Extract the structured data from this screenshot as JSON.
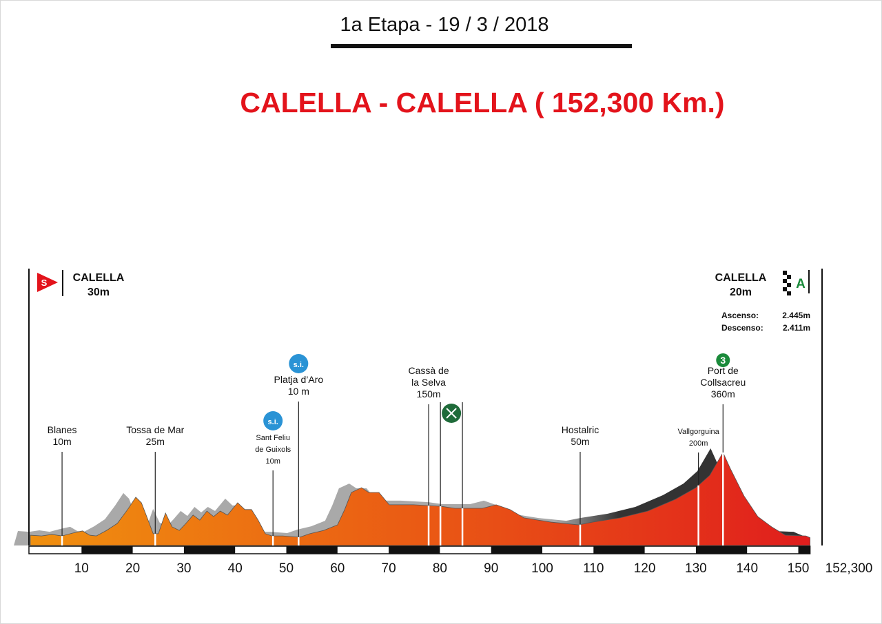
{
  "header": {
    "stage_date": "1a Etapa - 19 / 3 / 2018",
    "route_title": "CALELLA - CALELLA ( 152,300 Km.)"
  },
  "start": {
    "name": "CALELLA",
    "elevation": "30m",
    "icon": "start-flag-icon",
    "icon_text": "S"
  },
  "finish": {
    "name": "CALELLA",
    "elevation": "20m",
    "icon": "checkered-flag-icon",
    "icon_text": "A"
  },
  "totals": {
    "ascent_label": "Ascenso:",
    "ascent_value": "2.445m",
    "descent_label": "Descenso:",
    "descent_value": "2.411m"
  },
  "colors": {
    "title": "#e3131b",
    "profile_start": "#f0900f",
    "profile_mid": "#ea5a14",
    "profile_end": "#e01d1d",
    "shadow": "#a9a9a9",
    "shadow_dark": "#333333",
    "sprint_icon": "#2a93d5",
    "climb_icon": "#1a8a3a"
  },
  "chart_data": {
    "type": "area",
    "title": "",
    "xlabel": "",
    "ylabel": "",
    "xlim": [
      0,
      152.3
    ],
    "ylim": [
      0,
      380
    ],
    "x_ticks": [
      "10",
      "20",
      "30",
      "40",
      "50",
      "60",
      "70",
      "80",
      "90",
      "100",
      "110",
      "120",
      "130",
      "140",
      "150"
    ],
    "x_end_label": "152,300",
    "grid": false,
    "profile": {
      "km": [
        0,
        2.2,
        4.2,
        6.2,
        8.2,
        10.2,
        11.6,
        12.9,
        14.9,
        17.0,
        19.0,
        20.6,
        21.7,
        23.0,
        24.0,
        25.0,
        26.4,
        27.7,
        29.1,
        30.4,
        31.8,
        33.1,
        34.5,
        35.8,
        37.1,
        38.5,
        40.5,
        41.9,
        43.2,
        44.5,
        45.9,
        47.2,
        49.3,
        52.6,
        54.6,
        57.3,
        60.0,
        61.4,
        62.7,
        64.7,
        66.1,
        68.1,
        70.1,
        74.8,
        80.2,
        82.9,
        88.3,
        91.0,
        93.7,
        96.4,
        101.7,
        107.1,
        109.8,
        115.2,
        120.6,
        126.0,
        130.0,
        132.7,
        135.3,
        136.7,
        139.4,
        142.1,
        144.8,
        147.5,
        151.5,
        152.3
      ],
      "elevation_m": [
        30,
        27,
        33,
        27,
        38,
        47,
        30,
        27,
        49,
        77,
        132,
        181,
        159,
        90,
        36,
        36,
        118,
        63,
        49,
        77,
        110,
        90,
        126,
        104,
        126,
        110,
        159,
        132,
        132,
        90,
        36,
        27,
        27,
        22,
        36,
        49,
        71,
        132,
        200,
        219,
        200,
        200,
        151,
        151,
        145,
        137,
        137,
        151,
        132,
        99,
        82,
        71,
        82,
        99,
        126,
        173,
        219,
        268,
        359,
        296,
        186,
        104,
        63,
        30,
        27,
        20
      ]
    },
    "waypoints": [
      {
        "km": 6.2,
        "lines": [
          "Blanes",
          "10m"
        ],
        "icon": null
      },
      {
        "km": 24.4,
        "lines": [
          "Tossa de Mar",
          "25m"
        ],
        "icon": null
      },
      {
        "km": 47.4,
        "lines": [
          "Sant Feliu",
          "de Guixols",
          "10m"
        ],
        "icon": "intermediate-sprint-icon",
        "icon_text": "s.i.",
        "small": true
      },
      {
        "km": 52.4,
        "lines": [
          "Platja d’Aro",
          "10 m"
        ],
        "icon": "intermediate-sprint-icon",
        "icon_text": "s.i."
      },
      {
        "km": 77.8,
        "lines": [
          "Cassà de",
          "la Selva",
          "150m"
        ],
        "icon": null
      },
      {
        "km": 107.4,
        "lines": [
          "Hostalric",
          "50m"
        ],
        "icon": null
      },
      {
        "km": 130.5,
        "lines": [
          "Vallgorguina",
          "200m"
        ],
        "icon": null,
        "small": true
      },
      {
        "km": 135.3,
        "lines": [
          "Port de",
          "Collsacreu",
          "360m"
        ],
        "icon": "category-3-climb-icon",
        "icon_text": "3"
      }
    ],
    "feed_zone": {
      "km_start": 80.1,
      "km_end": 84.4,
      "icon": "feed-zone-icon"
    }
  }
}
